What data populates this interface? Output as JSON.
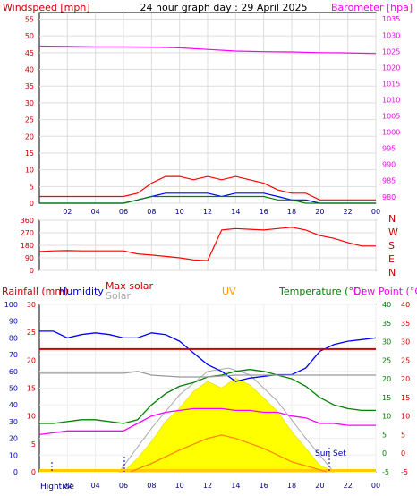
{
  "chart_data": [
    {
      "id": "wind-baro",
      "type": "line",
      "title": "24 hour graph day : 29 April 2025",
      "left_axis_label": "Windspeed [mph]",
      "right_axis_label": "Barometer [hpa]",
      "x_ticks": [
        "02",
        "04",
        "06",
        "08",
        "10",
        "12",
        "14",
        "16",
        "18",
        "20",
        "22",
        "00"
      ],
      "y_left_ticks": [
        "0",
        "5",
        "10",
        "15",
        "20",
        "25",
        "30",
        "35",
        "40",
        "45",
        "50",
        "55"
      ],
      "y_left_range": [
        0,
        57
      ],
      "y_right_ticks": [
        "980",
        "985",
        "990",
        "995",
        "1000",
        "1005",
        "1010",
        "1015",
        "1020",
        "1025",
        "1030",
        "1035"
      ],
      "y_right_range": [
        978,
        1037
      ],
      "series": [
        {
          "key": "gust",
          "color": "#ff0000",
          "x": [
            0,
            3,
            6,
            7,
            8,
            9,
            10,
            11,
            12,
            13,
            14,
            15,
            16,
            17,
            18,
            19,
            20,
            21,
            22,
            23,
            24
          ],
          "y": [
            2,
            2,
            2,
            3,
            6,
            8,
            8,
            7,
            8,
            7,
            8,
            7,
            6,
            4,
            3,
            3,
            1,
            1,
            1,
            1,
            1
          ]
        },
        {
          "key": "avg",
          "color": "#0000ff",
          "x": [
            0,
            3,
            6,
            7,
            8,
            9,
            10,
            11,
            12,
            13,
            14,
            15,
            16,
            17,
            18,
            19,
            20,
            21,
            22,
            23,
            24
          ],
          "y": [
            0,
            0,
            0,
            1,
            2,
            3,
            3,
            3,
            3,
            2,
            3,
            3,
            3,
            2,
            1,
            1,
            0,
            0,
            0,
            0,
            0
          ]
        },
        {
          "key": "wind",
          "color": "#008000",
          "x": [
            0,
            3,
            6,
            7,
            8,
            9,
            10,
            11,
            12,
            13,
            14,
            15,
            16,
            17,
            18,
            19,
            20,
            21,
            22,
            23,
            24
          ],
          "y": [
            0,
            0,
            0,
            1,
            2,
            2,
            2,
            2,
            2,
            2,
            2,
            2,
            2,
            1,
            1,
            0,
            0,
            0,
            0,
            0,
            0
          ]
        },
        {
          "key": "baro",
          "axis": "right",
          "color": "#ff00ff",
          "x": [
            0,
            2,
            4,
            6,
            8,
            10,
            12,
            14,
            16,
            18,
            20,
            22,
            24
          ],
          "y": [
            1026.6,
            1026.5,
            1026.4,
            1026.4,
            1026.3,
            1026.1,
            1025.6,
            1025.1,
            1024.9,
            1024.8,
            1024.6,
            1024.5,
            1024.3
          ]
        }
      ]
    },
    {
      "id": "wind-dir",
      "type": "line",
      "x_ticks": [
        "02",
        "04",
        "06",
        "08",
        "10",
        "12",
        "14",
        "16",
        "18",
        "20",
        "22",
        "00"
      ],
      "y_ticks": [
        "0",
        "90",
        "180",
        "270",
        "360"
      ],
      "y_range": [
        0,
        360
      ],
      "compass": [
        "N",
        "W",
        "S",
        "E",
        "N"
      ],
      "series": [
        {
          "key": "direction",
          "color": "#ff0000",
          "x": [
            0,
            1,
            2,
            3,
            4,
            5,
            6,
            7,
            8,
            9,
            10,
            11,
            12,
            13,
            14,
            15,
            16,
            17,
            18,
            19,
            20,
            21,
            22,
            23,
            24
          ],
          "y": [
            135,
            140,
            142,
            140,
            140,
            140,
            140,
            118,
            110,
            100,
            90,
            75,
            70,
            290,
            300,
            295,
            290,
            300,
            310,
            290,
            250,
            230,
            200,
            175,
            175
          ]
        }
      ]
    },
    {
      "id": "temp-hum-solar",
      "type": "line",
      "labels": {
        "rainfall": "Rainfall (mm)",
        "humidity": "Humidity",
        "max_solar": "Max solar",
        "solar": "Solar",
        "uv": "UV",
        "temperature": "Temperature (°C)",
        "dew_point": "Dew Point (°C)",
        "sun_set": "Sun Set",
        "hightide": "Hightide"
      },
      "x_ticks": [
        "02",
        "04",
        "06",
        "08",
        "10",
        "12",
        "14",
        "16",
        "18",
        "20",
        "22",
        "00"
      ],
      "humidity_ticks": [
        "0",
        "10",
        "20",
        "30",
        "40",
        "50",
        "60",
        "70",
        "80",
        "90",
        "100"
      ],
      "rain_ticks": [
        "0",
        "5",
        "10",
        "15",
        "20",
        "25",
        "30"
      ],
      "temp_ticks": [
        "-5",
        "0",
        "5",
        "10",
        "15",
        "20",
        "25",
        "30",
        "35",
        "40"
      ],
      "temp_range": [
        -5,
        40
      ],
      "series": [
        {
          "key": "humidity",
          "color": "#0000ff",
          "x": [
            0,
            1,
            2,
            3,
            4,
            5,
            6,
            7,
            8,
            9,
            10,
            11,
            12,
            13,
            14,
            15,
            16,
            17,
            18,
            19,
            20,
            21,
            22,
            23,
            24
          ],
          "y": [
            84,
            84,
            80,
            82,
            83,
            82,
            80,
            80,
            83,
            82,
            78,
            71,
            64,
            60,
            54,
            56,
            57,
            58,
            58,
            62,
            72,
            76,
            78,
            79,
            80
          ]
        },
        {
          "key": "temperature",
          "axis": "temp",
          "color": "#008000",
          "x": [
            0,
            1,
            2,
            3,
            4,
            5,
            6,
            7,
            8,
            9,
            10,
            11,
            12,
            13,
            14,
            15,
            16,
            17,
            18,
            19,
            20,
            21,
            22,
            23,
            24
          ],
          "y": [
            8,
            8,
            8.5,
            9,
            9,
            8.5,
            8,
            9,
            13,
            16,
            18,
            19,
            20.5,
            21,
            22,
            22.5,
            22,
            21,
            20,
            18,
            15,
            13,
            12,
            11.5,
            11.5
          ]
        },
        {
          "key": "dew_point",
          "axis": "temp",
          "color": "#ff00ff",
          "x": [
            0,
            1,
            2,
            3,
            4,
            5,
            6,
            7,
            8,
            9,
            10,
            11,
            12,
            13,
            14,
            15,
            16,
            17,
            18,
            19,
            20,
            21,
            22,
            23,
            24
          ],
          "y": [
            5,
            5.5,
            6,
            6,
            6,
            6,
            6,
            8,
            10,
            11,
            11.5,
            12,
            12,
            12,
            11.5,
            11.5,
            11,
            11,
            10,
            9.5,
            8,
            8,
            7.5,
            7.5,
            7.5
          ]
        },
        {
          "key": "rain_limit",
          "axis": "temp",
          "color": "#cc0000",
          "x": [
            0,
            24
          ],
          "y": [
            28,
            28
          ]
        },
        {
          "key": "solar_line",
          "axis": "temp",
          "color": "#999999",
          "x": [
            0,
            6,
            7,
            8,
            10,
            12,
            14,
            16,
            18,
            20,
            22,
            24
          ],
          "y": [
            21.5,
            21.5,
            22,
            21,
            20.5,
            20.5,
            21,
            21,
            21,
            21,
            21,
            21
          ]
        },
        {
          "key": "uv",
          "color": "#ff8800",
          "x": [
            6.5,
            8,
            10,
            12,
            13,
            14,
            16,
            18,
            20.5
          ],
          "y": [
            0,
            5,
            13,
            20,
            22,
            20,
            14,
            6,
            0
          ]
        }
      ],
      "solar_envelope": {
        "x": [
          5.7,
          8,
          10,
          12,
          13.5,
          15,
          17,
          19,
          21
        ],
        "y": [
          0,
          26,
          46,
          60,
          62,
          58,
          42,
          20,
          0
        ]
      },
      "solar_actual": {
        "x": [
          6,
          7,
          8,
          9,
          10,
          11,
          12,
          13,
          14,
          15,
          16,
          17,
          18,
          19,
          20,
          21
        ],
        "y": [
          0,
          8,
          18,
          30,
          38,
          48,
          54,
          50,
          56,
          52,
          44,
          36,
          24,
          14,
          4,
          0
        ]
      }
    }
  ]
}
